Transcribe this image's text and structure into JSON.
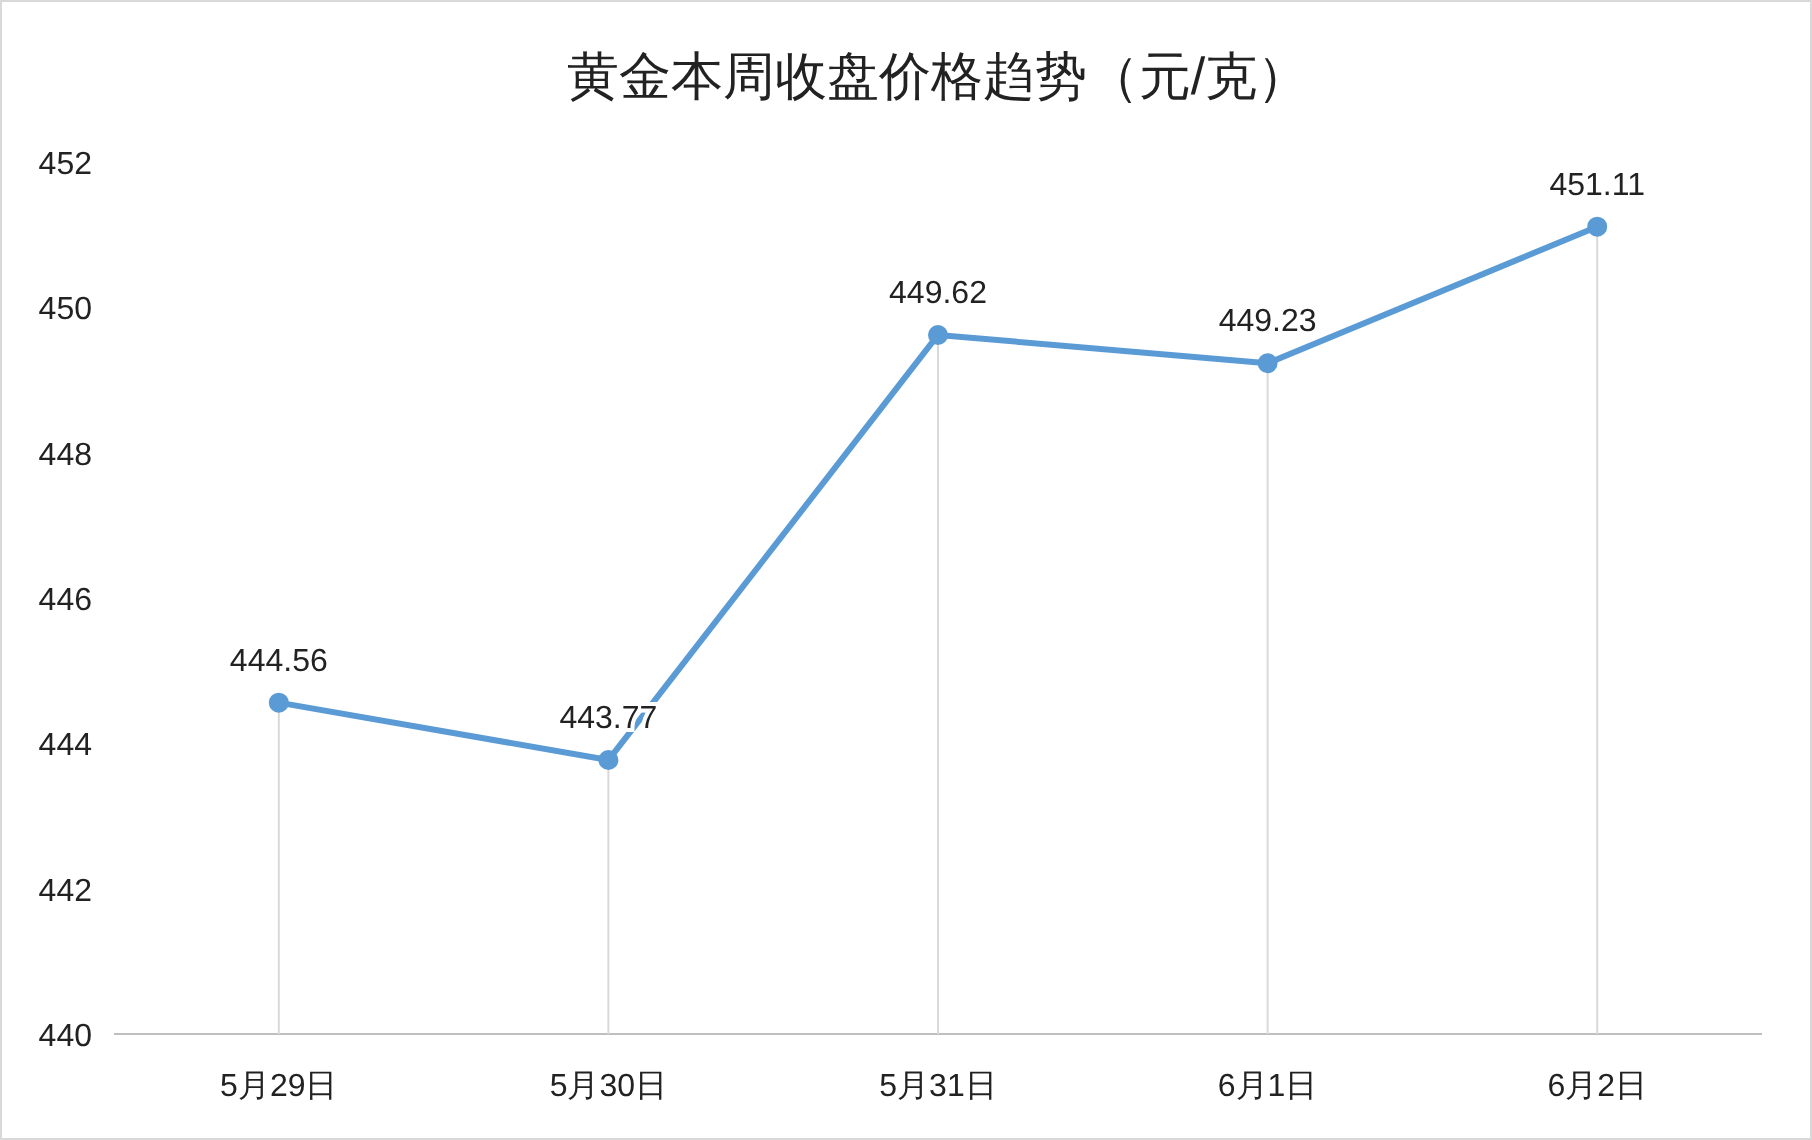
{
  "chart_data": {
    "type": "line",
    "title": "黄金本周收盘价格趋势（元/克）",
    "categories": [
      "5月29日",
      "5月30日",
      "5月31日",
      "6月1日",
      "6月2日"
    ],
    "series": [
      {
        "color": "#5b9bd5",
        "values": [
          444.56,
          443.77,
          449.62,
          449.23,
          451.11
        ]
      }
    ],
    "ylim": [
      440,
      452
    ],
    "yticks": [
      440,
      442,
      444,
      446,
      448,
      450,
      452
    ],
    "data_labels": true,
    "marker": "circle",
    "grid": "x"
  }
}
